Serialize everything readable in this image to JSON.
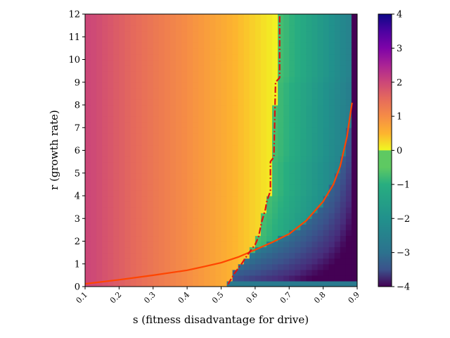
{
  "chart_data": {
    "type": "heatmap",
    "xlabel": "s (fitness disadvantage for drive)",
    "ylabel": "r (growth rate)",
    "xlim": [
      0.1,
      0.9
    ],
    "ylim": [
      0,
      12
    ],
    "x_ticks": [
      "0.1",
      "0.2",
      "0.3",
      "0.4",
      "0.5",
      "0.6",
      "0.7",
      "0.8",
      "0.9"
    ],
    "y_ticks": [
      "0",
      "1",
      "2",
      "3",
      "4",
      "5",
      "6",
      "7",
      "8",
      "9",
      "10",
      "11",
      "12"
    ],
    "colorbar": {
      "range": [
        -4,
        4
      ],
      "ticks": [
        "−4",
        "−3",
        "−2",
        "−1",
        "0",
        "1",
        "2",
        "3",
        "4"
      ],
      "positive_colormap": "plasma_r",
      "negative_colormap": "viridis"
    },
    "grid": false,
    "series": [
      {
        "style": "solid",
        "color": "#ff4500",
        "points": [
          [
            0.1,
            0.12
          ],
          [
            0.2,
            0.3
          ],
          [
            0.3,
            0.5
          ],
          [
            0.4,
            0.72
          ],
          [
            0.45,
            0.88
          ],
          [
            0.5,
            1.05
          ],
          [
            0.55,
            1.3
          ],
          [
            0.6,
            1.62
          ],
          [
            0.65,
            1.95
          ],
          [
            0.7,
            2.32
          ],
          [
            0.75,
            2.9
          ],
          [
            0.8,
            3.75
          ],
          [
            0.83,
            4.5
          ],
          [
            0.85,
            5.3
          ],
          [
            0.87,
            6.6
          ],
          [
            0.88,
            7.6
          ],
          [
            0.885,
            8.1
          ]
        ]
      },
      {
        "style": "dashdot",
        "color": "#dd1111",
        "points": [
          [
            0.52,
            0.1
          ],
          [
            0.54,
            0.6
          ],
          [
            0.56,
            1.0
          ],
          [
            0.58,
            1.45
          ],
          [
            0.6,
            1.85
          ],
          [
            0.61,
            2.2
          ],
          [
            0.62,
            2.9
          ],
          [
            0.63,
            3.4
          ],
          [
            0.635,
            3.8
          ],
          [
            0.645,
            4.2
          ],
          [
            0.645,
            5.5
          ],
          [
            0.655,
            5.7
          ],
          [
            0.66,
            9.0
          ],
          [
            0.672,
            9.2
          ],
          [
            0.672,
            12.0
          ]
        ]
      }
    ]
  }
}
